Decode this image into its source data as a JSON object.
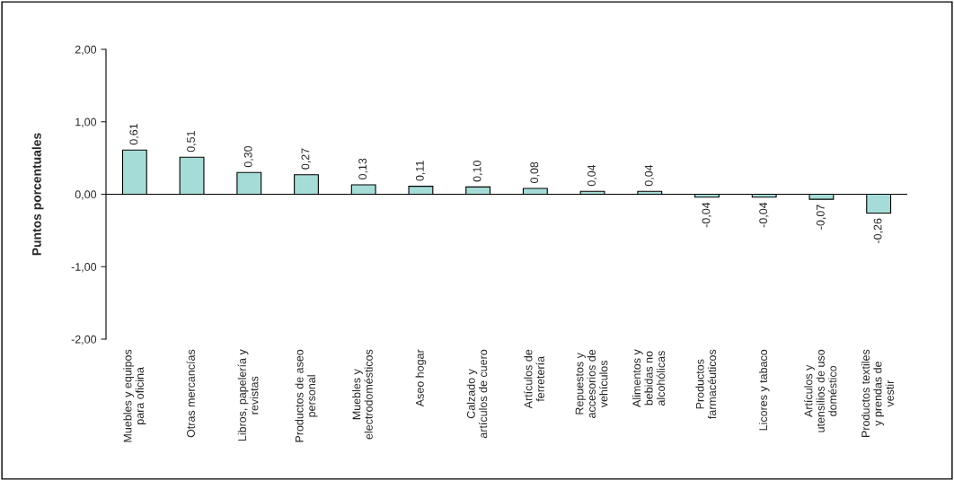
{
  "chart_data": {
    "type": "bar",
    "ylabel": "Puntos porcentuales",
    "categories": [
      "Muebles y equipos\npara oficina",
      "Otras mercancías",
      "Libros, papelería y\nrevistas",
      "Productos de aseo\npersonal",
      "Muebles y\nelectrodomésticos",
      "Aseo hogar",
      "Calzado y\nartículos de cuero",
      "Artículos de\nferretería",
      "Repuestos y\naccesorios de\nvehículos",
      "Alimentos y\nbebidas no\nalcohólicas",
      "Productos\nfarmacéuticos",
      "Licores y tabaco",
      "Artículos y\nutensilios de uso\ndoméstico",
      "Productos textiles\ny prendas de\nvestir"
    ],
    "values": [
      0.61,
      0.51,
      0.3,
      0.27,
      0.13,
      0.11,
      0.1,
      0.08,
      0.04,
      0.04,
      -0.04,
      -0.04,
      -0.07,
      -0.26
    ],
    "value_labels": [
      "0,61",
      "0,51",
      "0,30",
      "0,27",
      "0,13",
      "0,11",
      "0,10",
      "0,08",
      "0,04",
      "0,04",
      "-0,04",
      "-0,04",
      "-0,07",
      "-0,26"
    ],
    "color": "#a6dcd8",
    "ylim": [
      -2,
      2
    ],
    "yticks": [
      {
        "value": -2,
        "label": "-2,00"
      },
      {
        "value": -1,
        "label": "-1,00"
      },
      {
        "value": 0,
        "label": "0,00"
      },
      {
        "value": 1,
        "label": "1,00"
      },
      {
        "value": 2,
        "label": "2,00"
      }
    ],
    "ref_lines": [
      {
        "axis": "y",
        "value": 0,
        "color": "#000000"
      }
    ],
    "grid": false,
    "legend": false
  }
}
